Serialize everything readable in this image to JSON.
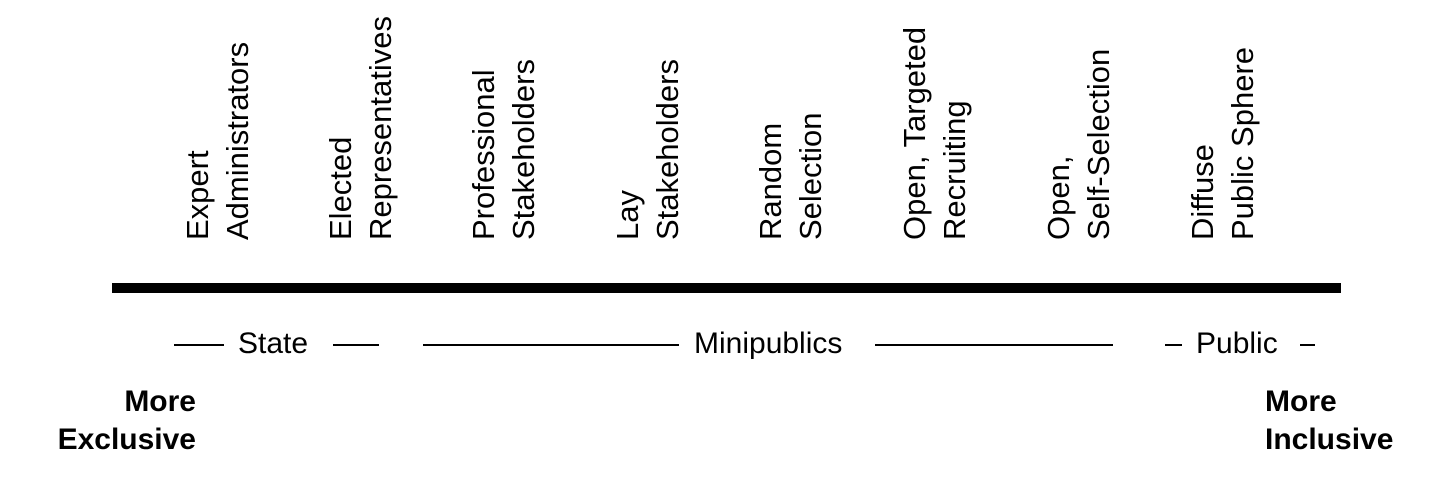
{
  "categories": [
    {
      "line1": "Expert",
      "line2": "Administrators"
    },
    {
      "line1": "Elected",
      "line2": "Representatives"
    },
    {
      "line1": "Professional",
      "line2": "Stakeholders"
    },
    {
      "line1": "Lay",
      "line2": "Stakeholders"
    },
    {
      "line1": "Random",
      "line2": "Selection"
    },
    {
      "line1": "Open, Targeted",
      "line2": "Recruiting"
    },
    {
      "line1": "Open,",
      "line2": "Self-Selection"
    },
    {
      "line1": "Diffuse",
      "line2": "Public Sphere"
    }
  ],
  "groups": [
    {
      "label": "State"
    },
    {
      "label": "Minipublics"
    },
    {
      "label": "Public"
    }
  ],
  "ends": {
    "left": {
      "line1": "More",
      "line2": "Exclusive"
    },
    "right": {
      "line1": "More",
      "line2": "Inclusive"
    }
  }
}
